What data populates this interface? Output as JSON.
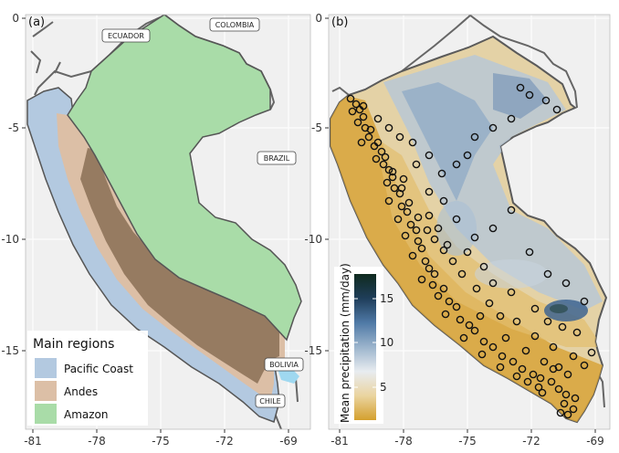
{
  "panels": {
    "a": {
      "label": "(a)"
    },
    "b": {
      "label": "(b)"
    }
  },
  "axes": {
    "x_ticks": [
      "-81",
      "-78",
      "-75",
      "-72",
      "-69"
    ],
    "y_ticks": [
      "0",
      "-5",
      "-10",
      "-15"
    ]
  },
  "countries": {
    "ecuador": "ECUADOR",
    "colombia": "COLOMBIA",
    "brazil": "BRAZIL",
    "bolivia": "BOLIVIA",
    "chile": "CHILE"
  },
  "legend": {
    "title": "Main regions",
    "items": [
      {
        "label": "Pacific Coast",
        "color": "#b3c9e0"
      },
      {
        "label": "Andes",
        "color": "#dcbfa6"
      },
      {
        "label": "Amazon",
        "color": "#a9dca8"
      }
    ]
  },
  "colorbar": {
    "title": "Mean precipitation (mm/day)",
    "ticks": [
      "5",
      "10",
      "15"
    ],
    "stops": [
      "#d4a02e",
      "#ead4a0",
      "#e8ecf0",
      "#9bb4cc",
      "#4f79a6",
      "#1f3e5a",
      "#0f2a1e"
    ]
  },
  "colors": {
    "panel_bg": "#f0f0f0",
    "border": "#555555",
    "andes_dark": "#8a6e55",
    "amazon": "#a9dca8",
    "coast": "#b3c9e0",
    "lake": "#9fd8f0"
  }
}
